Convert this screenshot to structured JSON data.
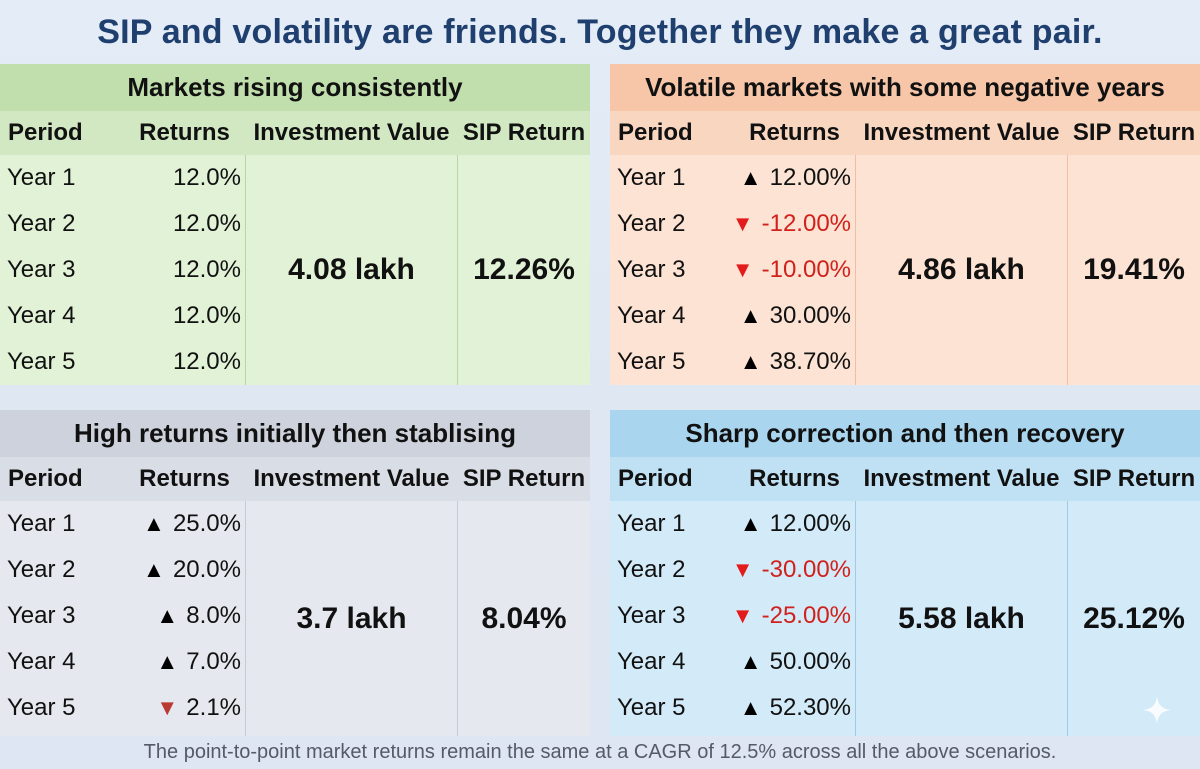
{
  "title": "SIP and volatility are friends. Together they make a great pair.",
  "footer": "The point-to-point market returns remain the same at a CAGR of 12.5% across all the above scenarios.",
  "headers": {
    "period": "Period",
    "returns": "Returns",
    "investment_value": "Investment Value",
    "sip_return": "SIP Return"
  },
  "colors": {
    "title": "#1f3f6e",
    "green_panel": "#e2f2d6",
    "orange_panel": "#fce3d3",
    "grey_panel": "#e5e8ee",
    "blue_panel": "#d3ebf8",
    "negative": "#d0211c"
  },
  "scenarios": [
    {
      "title": "Markets rising consistently",
      "investment_value": "4.08 lakh",
      "sip_return": "12.26%",
      "rows": [
        {
          "period": "Year 1",
          "return": "12.0%",
          "arrow": "",
          "negative": false
        },
        {
          "period": "Year 2",
          "return": "12.0%",
          "arrow": "",
          "negative": false
        },
        {
          "period": "Year 3",
          "return": "12.0%",
          "arrow": "",
          "negative": false
        },
        {
          "period": "Year 4",
          "return": "12.0%",
          "arrow": "",
          "negative": false
        },
        {
          "period": "Year 5",
          "return": "12.0%",
          "arrow": "",
          "negative": false
        }
      ]
    },
    {
      "title": "Volatile markets with some negative years",
      "investment_value": "4.86 lakh",
      "sip_return": "19.41%",
      "rows": [
        {
          "period": "Year 1",
          "return": "12.00%",
          "arrow": "up",
          "negative": false
        },
        {
          "period": "Year 2",
          "return": "-12.00%",
          "arrow": "down",
          "negative": true
        },
        {
          "period": "Year 3",
          "return": "-10.00%",
          "arrow": "down",
          "negative": true
        },
        {
          "period": "Year 4",
          "return": "30.00%",
          "arrow": "up",
          "negative": false
        },
        {
          "period": "Year 5",
          "return": "38.70%",
          "arrow": "up",
          "negative": false
        }
      ]
    },
    {
      "title": "High returns initially then stablising",
      "investment_value": "3.7 lakh",
      "sip_return": "8.04%",
      "rows": [
        {
          "period": "Year 1",
          "return": "25.0%",
          "arrow": "up",
          "negative": false
        },
        {
          "period": "Year 2",
          "return": "20.0%",
          "arrow": "up",
          "negative": false
        },
        {
          "period": "Year 3",
          "return": "8.0%",
          "arrow": "up",
          "negative": false
        },
        {
          "period": "Year 4",
          "return": "7.0%",
          "arrow": "up",
          "negative": false
        },
        {
          "period": "Year 5",
          "return": "2.1%",
          "arrow": "down-dark",
          "negative": false
        }
      ]
    },
    {
      "title": "Sharp correction and then recovery",
      "investment_value": "5.58 lakh",
      "sip_return": "25.12%",
      "rows": [
        {
          "period": "Year 1",
          "return": "12.00%",
          "arrow": "up",
          "negative": false
        },
        {
          "period": "Year 2",
          "return": "-30.00%",
          "arrow": "down",
          "negative": true
        },
        {
          "period": "Year 3",
          "return": "-25.00%",
          "arrow": "down",
          "negative": true
        },
        {
          "period": "Year 4",
          "return": "50.00%",
          "arrow": "up",
          "negative": false
        },
        {
          "period": "Year 5",
          "return": "52.30%",
          "arrow": "up",
          "negative": false
        }
      ]
    }
  ]
}
